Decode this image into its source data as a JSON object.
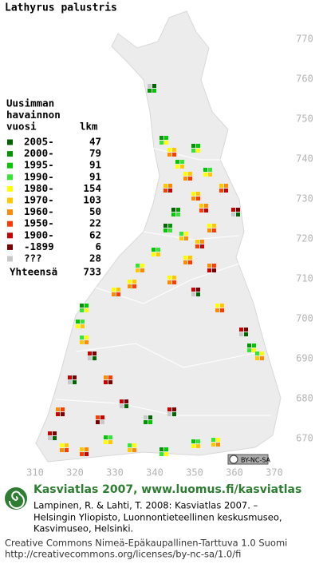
{
  "title": "Lathyrus palustris",
  "legend": {
    "heading": [
      "Uusimman",
      "havainnon",
      "vuosi"
    ],
    "count_heading": "lkm",
    "items": [
      {
        "label": "2005-",
        "count": 47,
        "color": "#006400"
      },
      {
        "label": "2000-",
        "count": 79,
        "color": "#009600"
      },
      {
        "label": "1995-",
        "count": 91,
        "color": "#00c800"
      },
      {
        "label": "1990-",
        "count": 91,
        "color": "#32e632"
      },
      {
        "label": "1980-",
        "count": 154,
        "color": "#ffff00"
      },
      {
        "label": "1970-",
        "count": 103,
        "color": "#ffc800"
      },
      {
        "label": "1960-",
        "count": 50,
        "color": "#ff8c00"
      },
      {
        "label": "1950-",
        "count": 22,
        "color": "#ff3c00"
      },
      {
        "label": "1900-",
        "count": 62,
        "color": "#c80000"
      },
      {
        "label": "-1899",
        "count": 6,
        "color": "#780000"
      },
      {
        "label": "???",
        "count": 28,
        "color": "#c8c8c8"
      }
    ],
    "total_label": "Yhteensä",
    "total": 733
  },
  "grid": {
    "xticks": [
      310,
      320,
      330,
      340,
      350,
      360,
      370
    ],
    "yticks": [
      770,
      760,
      750,
      740,
      730,
      720,
      710,
      700,
      690,
      680,
      670
    ]
  },
  "license_badge": "BY-NC-SA",
  "footer": {
    "heading": "Kasviatlas 2007, www.luomus.fi/kasviatlas",
    "citation": [
      "Lampinen, R. & Lahti, T. 2008: Kasviatlas 2007. –",
      "Helsingin Yliopisto, Luonnontieteellinen keskusmuseo,",
      "Kasvimuseo, Helsinki."
    ],
    "license": [
      "Creative Commons Nimeä-Epäkaupallinen-Tarttuva 1.0 Suomi",
      "http://creativecommons.org/licenses/by-nc-sa/1.0/fi"
    ]
  }
}
